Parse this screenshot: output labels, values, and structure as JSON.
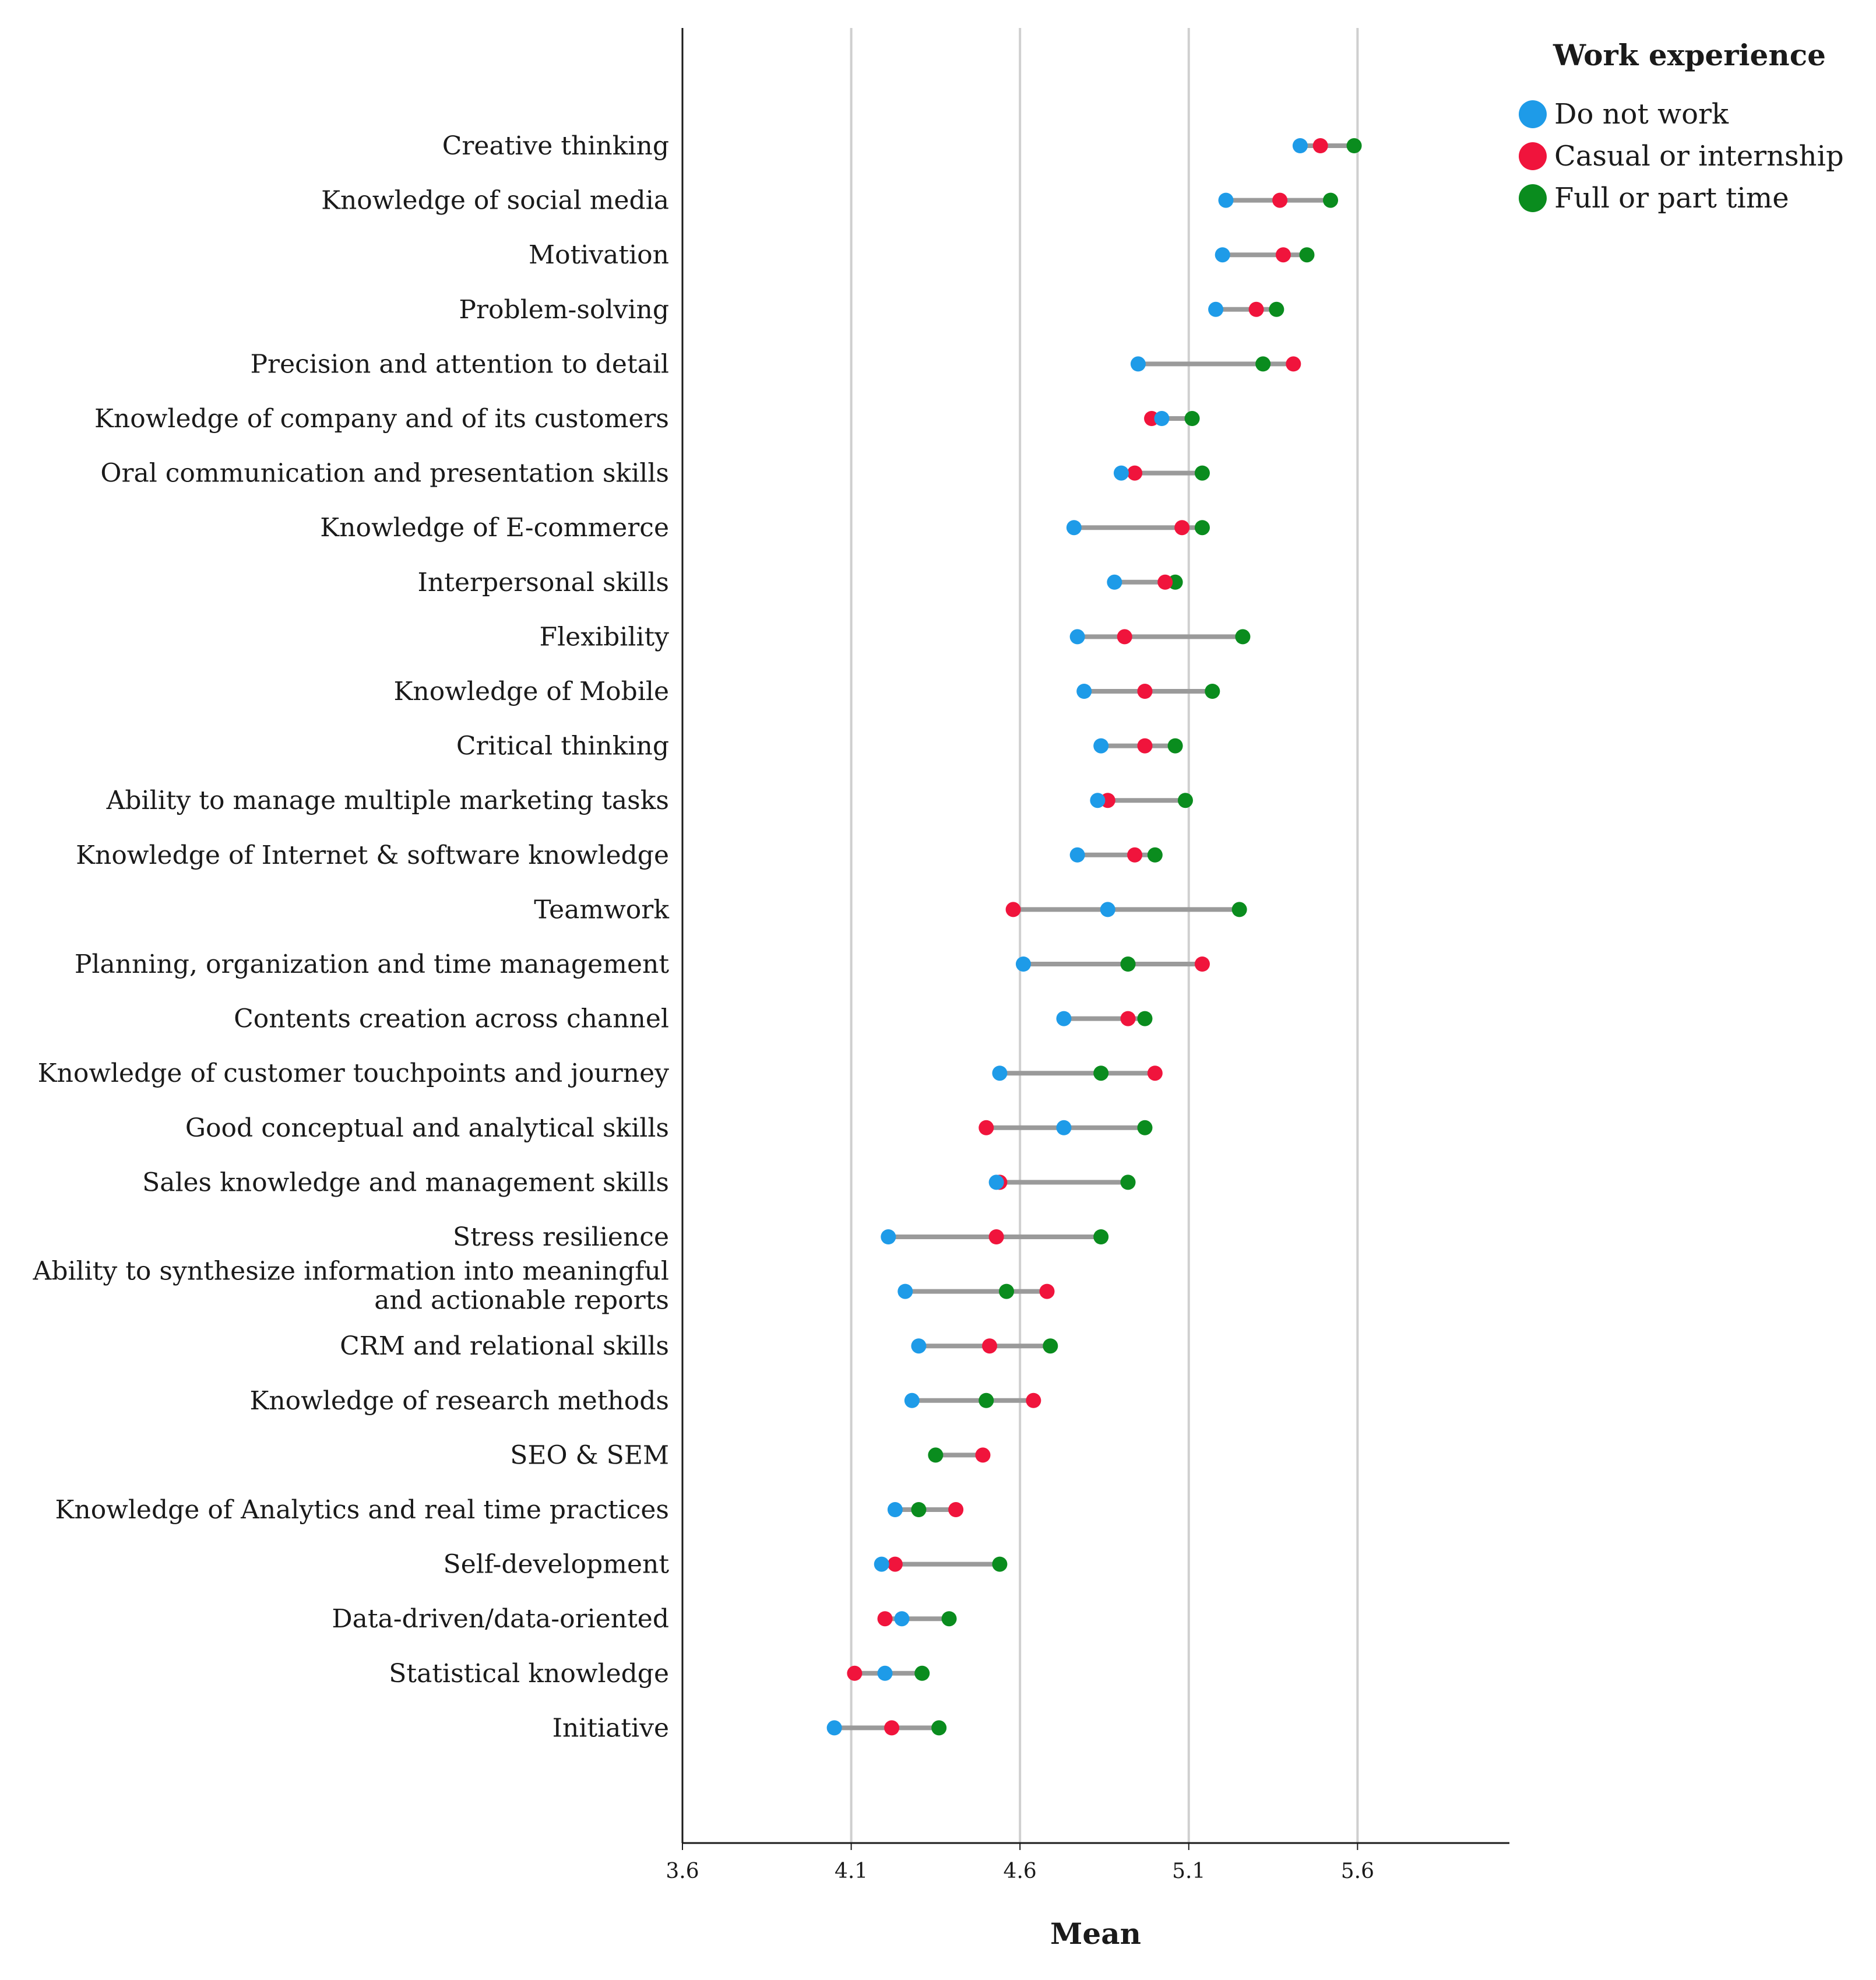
{
  "chart_data": {
    "type": "scatter",
    "subtype": "dumbbell",
    "xlabel": "Mean",
    "xlim": [
      3.6,
      6.05
    ],
    "xticks": [
      "3.6",
      "4.1",
      "4.6",
      "5.1",
      "5.6"
    ],
    "grid": "vertical at 4.1, 4.6, 5.1, 5.6",
    "legend": {
      "title": "Work experience",
      "placement": "top-right",
      "items": [
        {
          "key": "do_not_work",
          "label": "Do not work",
          "color": "#1e9be8"
        },
        {
          "key": "casual",
          "label": "Casual or internship",
          "color": "#f0143c"
        },
        {
          "key": "full",
          "label": "Full or part time",
          "color": "#0a8c1e"
        }
      ]
    },
    "connector_color": "#9a9a9a",
    "categories": [
      {
        "label": [
          "Creative thinking"
        ],
        "do_not_work": 5.43,
        "casual": 5.49,
        "full": 5.59
      },
      {
        "label": [
          "Knowledge of social media"
        ],
        "do_not_work": 5.21,
        "casual": 5.37,
        "full": 5.52
      },
      {
        "label": [
          "Motivation"
        ],
        "do_not_work": 5.2,
        "casual": 5.38,
        "full": 5.45
      },
      {
        "label": [
          "Problem-solving"
        ],
        "do_not_work": 5.18,
        "casual": 5.3,
        "full": 5.36
      },
      {
        "label": [
          "Precision and attention to detail"
        ],
        "do_not_work": 4.95,
        "casual": 5.41,
        "full": 5.32
      },
      {
        "label": [
          "Knowledge of company and of its customers"
        ],
        "do_not_work": 5.02,
        "casual": 4.99,
        "full": 5.11
      },
      {
        "label": [
          "Oral communication and presentation skills"
        ],
        "do_not_work": 4.9,
        "casual": 4.94,
        "full": 5.14
      },
      {
        "label": [
          "Knowledge of E-commerce"
        ],
        "do_not_work": 4.76,
        "casual": 5.08,
        "full": 5.14
      },
      {
        "label": [
          "Interpersonal skills"
        ],
        "do_not_work": 4.88,
        "casual": 5.03,
        "full": 5.06
      },
      {
        "label": [
          "Flexibility"
        ],
        "do_not_work": 4.77,
        "casual": 4.91,
        "full": 5.26
      },
      {
        "label": [
          "Knowledge of Mobile"
        ],
        "do_not_work": 4.79,
        "casual": 4.97,
        "full": 5.17
      },
      {
        "label": [
          "Critical thinking"
        ],
        "do_not_work": 4.84,
        "casual": 4.97,
        "full": 5.06
      },
      {
        "label": [
          "Ability to manage multiple marketing tasks"
        ],
        "do_not_work": 4.83,
        "casual": 4.86,
        "full": 5.09
      },
      {
        "label": [
          "Knowledge of Internet & software knowledge"
        ],
        "do_not_work": 4.77,
        "casual": 4.94,
        "full": 5.0
      },
      {
        "label": [
          "Teamwork"
        ],
        "do_not_work": 4.86,
        "casual": 4.58,
        "full": 5.25
      },
      {
        "label": [
          "Planning, organization and time management"
        ],
        "do_not_work": 4.61,
        "casual": 5.14,
        "full": 4.92
      },
      {
        "label": [
          "Contents creation across channel"
        ],
        "do_not_work": 4.73,
        "casual": 4.92,
        "full": 4.97
      },
      {
        "label": [
          "Knowledge of customer touchpoints and journey"
        ],
        "do_not_work": 4.54,
        "casual": 5.0,
        "full": 4.84
      },
      {
        "label": [
          "Good conceptual and analytical skills"
        ],
        "do_not_work": 4.73,
        "casual": 4.5,
        "full": 4.97
      },
      {
        "label": [
          "Sales knowledge and management skills"
        ],
        "do_not_work": 4.53,
        "casual": 4.54,
        "full": 4.92
      },
      {
        "label": [
          "Stress resilience"
        ],
        "do_not_work": 4.21,
        "casual": 4.53,
        "full": 4.84
      },
      {
        "label": [
          "Ability to synthesize information into meaningful",
          "and actionable reports"
        ],
        "do_not_work": 4.26,
        "casual": 4.68,
        "full": 4.56
      },
      {
        "label": [
          "CRM and relational skills"
        ],
        "do_not_work": 4.3,
        "casual": 4.51,
        "full": 4.69
      },
      {
        "label": [
          "Knowledge of research methods"
        ],
        "do_not_work": 4.28,
        "casual": 4.64,
        "full": 4.5
      },
      {
        "label": [
          "SEO & SEM"
        ],
        "do_not_work": null,
        "casual": 4.49,
        "full": 4.35
      },
      {
        "label": [
          "Knowledge of Analytics and real time practices"
        ],
        "do_not_work": 4.23,
        "casual": 4.41,
        "full": 4.3
      },
      {
        "label": [
          "Self-development"
        ],
        "do_not_work": 4.19,
        "casual": 4.23,
        "full": 4.54
      },
      {
        "label": [
          "Data-driven/data-oriented"
        ],
        "do_not_work": 4.25,
        "casual": 4.2,
        "full": 4.39
      },
      {
        "label": [
          "Statistical knowledge"
        ],
        "do_not_work": 4.2,
        "casual": 4.11,
        "full": 4.31
      },
      {
        "label": [
          "Initiative"
        ],
        "do_not_work": 4.05,
        "casual": 4.22,
        "full": 4.36
      }
    ]
  }
}
